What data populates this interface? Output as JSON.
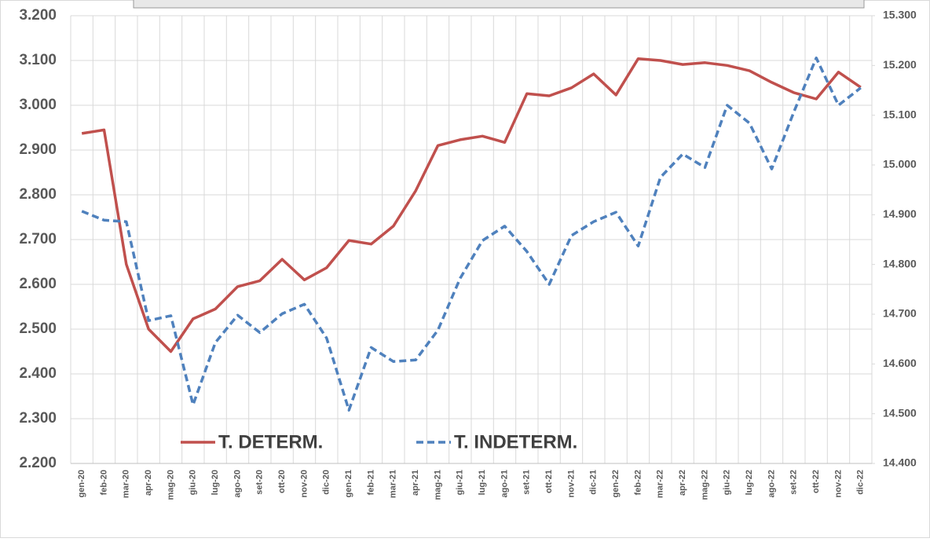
{
  "chart_data": {
    "type": "line",
    "categories": [
      "gen-20",
      "feb-20",
      "mar-20",
      "apr-20",
      "mag-20",
      "giu-20",
      "lug-20",
      "ago-20",
      "set-20",
      "ott-20",
      "nov-20",
      "dic-20",
      "gen-21",
      "feb-21",
      "mar-21",
      "apr-21",
      "mag-21",
      "giu-21",
      "lug-21",
      "ago-21",
      "set-21",
      "ott-21",
      "nov-21",
      "dic-21",
      "gen-22",
      "feb-22",
      "mar-22",
      "apr-22",
      "mag-22",
      "giu-22",
      "lug-22",
      "ago-22",
      "set-22",
      "ott-22",
      "nov-22",
      "dic-22"
    ],
    "series": [
      {
        "name": "T. DETERM.",
        "color": "#c0504d",
        "dash": false,
        "values": [
          2937,
          2945,
          2645,
          2500,
          2450,
          2523,
          2545,
          2595,
          2608,
          2656,
          2610,
          2637,
          2698,
          2690,
          2730,
          2809,
          2910,
          2923,
          2931,
          2917,
          3026,
          3021,
          3039,
          3070,
          3023,
          3104,
          3100,
          3091,
          3095,
          3089,
          3077,
          3051,
          3028,
          3014,
          3074,
          3040
        ]
      },
      {
        "name": "T. INDETERM.",
        "color": "#4f81bd",
        "dash": true,
        "axis": "y2",
        "values": [
          14907,
          14889,
          14886,
          14687,
          14697,
          14518,
          14643,
          14698,
          14663,
          14701,
          14720,
          14652,
          14507,
          14633,
          14605,
          14608,
          14668,
          14772,
          14848,
          14877,
          14826,
          14760,
          14858,
          14886,
          14905,
          14837,
          14975,
          15022,
          14995,
          15120,
          15084,
          14992,
          15107,
          15215,
          15120,
          15155
        ]
      }
    ],
    "ylim": [
      2200,
      3200
    ],
    "yticks": [
      {
        "value": 2200,
        "label": "2.200"
      },
      {
        "value": 2300,
        "label": "2.300"
      },
      {
        "value": 2400,
        "label": "2.400"
      },
      {
        "value": 2500,
        "label": "2.500"
      },
      {
        "value": 2600,
        "label": "2.600"
      },
      {
        "value": 2700,
        "label": "2.700"
      },
      {
        "value": 2800,
        "label": "2.800"
      },
      {
        "value": 2900,
        "label": "2.900"
      },
      {
        "value": 3000,
        "label": "3.000"
      },
      {
        "value": 3100,
        "label": "3.100"
      },
      {
        "value": 3200,
        "label": "3.200"
      }
    ],
    "y2lim": [
      14400,
      15300
    ],
    "y2ticks": [
      {
        "value": 14400,
        "label": "14.400"
      },
      {
        "value": 14500,
        "label": "14.500"
      },
      {
        "value": 14600,
        "label": "14.600"
      },
      {
        "value": 14700,
        "label": "14.700"
      },
      {
        "value": 14800,
        "label": "14.800"
      },
      {
        "value": 14900,
        "label": "14.900"
      },
      {
        "value": 15000,
        "label": "15.000"
      },
      {
        "value": 15100,
        "label": "15.100"
      },
      {
        "value": 15200,
        "label": "15.200"
      },
      {
        "value": 15300,
        "label": "15.300"
      }
    ],
    "grid": true,
    "legend": "bottom-left"
  }
}
